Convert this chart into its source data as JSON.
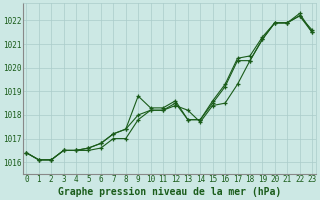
{
  "title": "Graphe pression niveau de la mer (hPa)",
  "bg_color": "#cce8e4",
  "grid_color": "#aaccca",
  "line_color": "#1a5c1a",
  "x": [
    0,
    1,
    2,
    3,
    4,
    5,
    6,
    7,
    8,
    9,
    10,
    11,
    12,
    13,
    14,
    15,
    16,
    17,
    18,
    19,
    20,
    21,
    22,
    23
  ],
  "line1": [
    1016.4,
    1016.1,
    1016.1,
    1016.5,
    1016.5,
    1016.5,
    1016.6,
    1017.0,
    1017.0,
    1017.8,
    1018.2,
    1018.2,
    1018.4,
    1018.2,
    1017.7,
    1018.4,
    1018.5,
    1019.3,
    1020.3,
    1021.2,
    1021.9,
    1021.9,
    1022.2,
    1021.5
  ],
  "line2": [
    1016.4,
    1016.1,
    1016.1,
    1016.5,
    1016.5,
    1016.6,
    1016.8,
    1017.2,
    1017.4,
    1018.0,
    1018.2,
    1018.2,
    1018.5,
    1017.8,
    1017.8,
    1018.6,
    1019.3,
    1020.4,
    1020.5,
    1021.3,
    1021.9,
    1021.9,
    1022.2,
    1021.6
  ],
  "line3": [
    1016.4,
    1016.1,
    1016.1,
    1016.5,
    1016.5,
    1016.6,
    1016.8,
    1017.2,
    1017.4,
    1018.8,
    1018.3,
    1018.3,
    1018.6,
    1017.8,
    1017.8,
    1018.5,
    1019.2,
    1020.3,
    1020.3,
    1021.2,
    1021.9,
    1021.9,
    1022.3,
    1021.5
  ],
  "ylim": [
    1015.5,
    1022.75
  ],
  "yticks": [
    1016,
    1017,
    1018,
    1019,
    1020,
    1021,
    1022
  ],
  "xticks": [
    0,
    1,
    2,
    3,
    4,
    5,
    6,
    7,
    8,
    9,
    10,
    11,
    12,
    13,
    14,
    15,
    16,
    17,
    18,
    19,
    20,
    21,
    22,
    23
  ],
  "marker": "+",
  "markersize": 3,
  "linewidth": 0.8,
  "title_fontsize": 7,
  "tick_fontsize": 5.5
}
